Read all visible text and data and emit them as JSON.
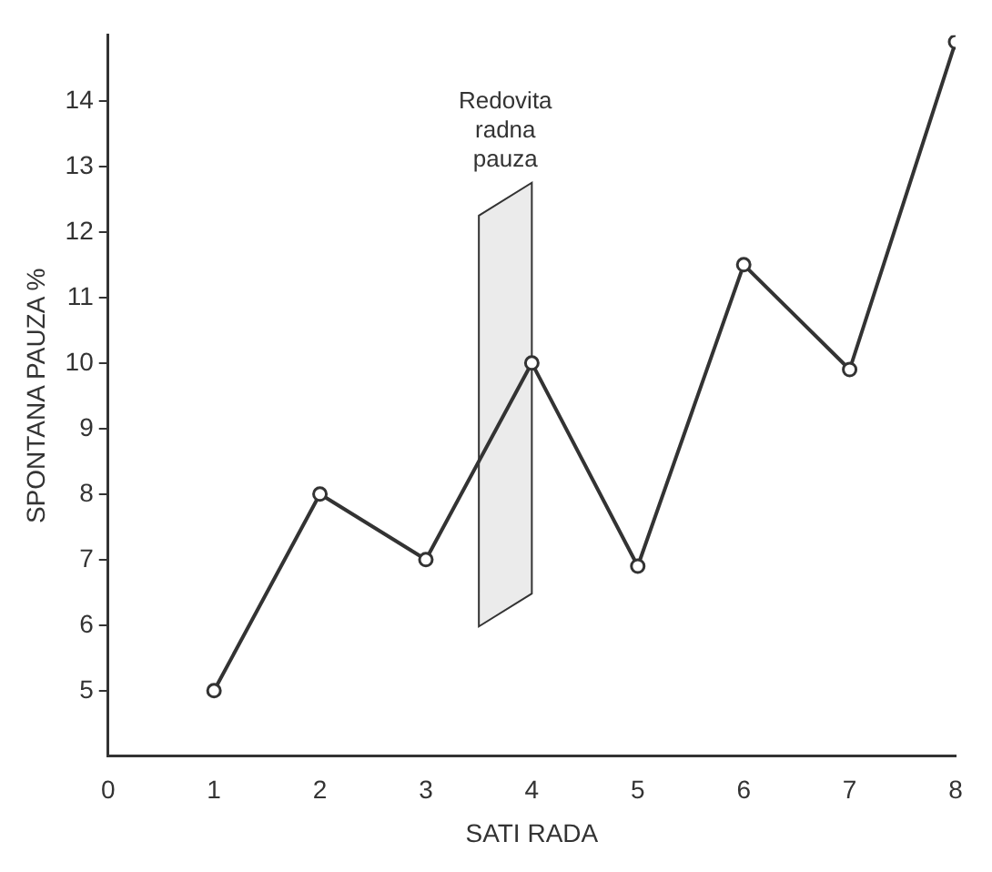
{
  "chart_data": {
    "type": "line",
    "xlabel": "SATI RADA",
    "ylabel": "SPONTANA PAUZA %",
    "x": [
      1,
      2,
      3,
      4,
      5,
      6,
      7,
      8
    ],
    "series": [
      {
        "color": "#333333",
        "values": [
          5,
          8,
          7,
          10,
          6.9,
          11.5,
          9.9,
          14.9
        ]
      }
    ],
    "xlim": [
      0,
      8
    ],
    "xticks": [
      0,
      1,
      2,
      3,
      4,
      5,
      6,
      7,
      8
    ],
    "ylim": [
      4,
      15
    ],
    "yticks": [
      5,
      6,
      7,
      8,
      9,
      10,
      11,
      12,
      13,
      14
    ],
    "bands": [
      {
        "axis": "x",
        "from": 3.5,
        "to": 4,
        "label": "Redovita radna pauza",
        "color": "#ebebeb"
      }
    ],
    "marker": "circle",
    "line_style": "solid",
    "grid": false,
    "legend": false
  }
}
